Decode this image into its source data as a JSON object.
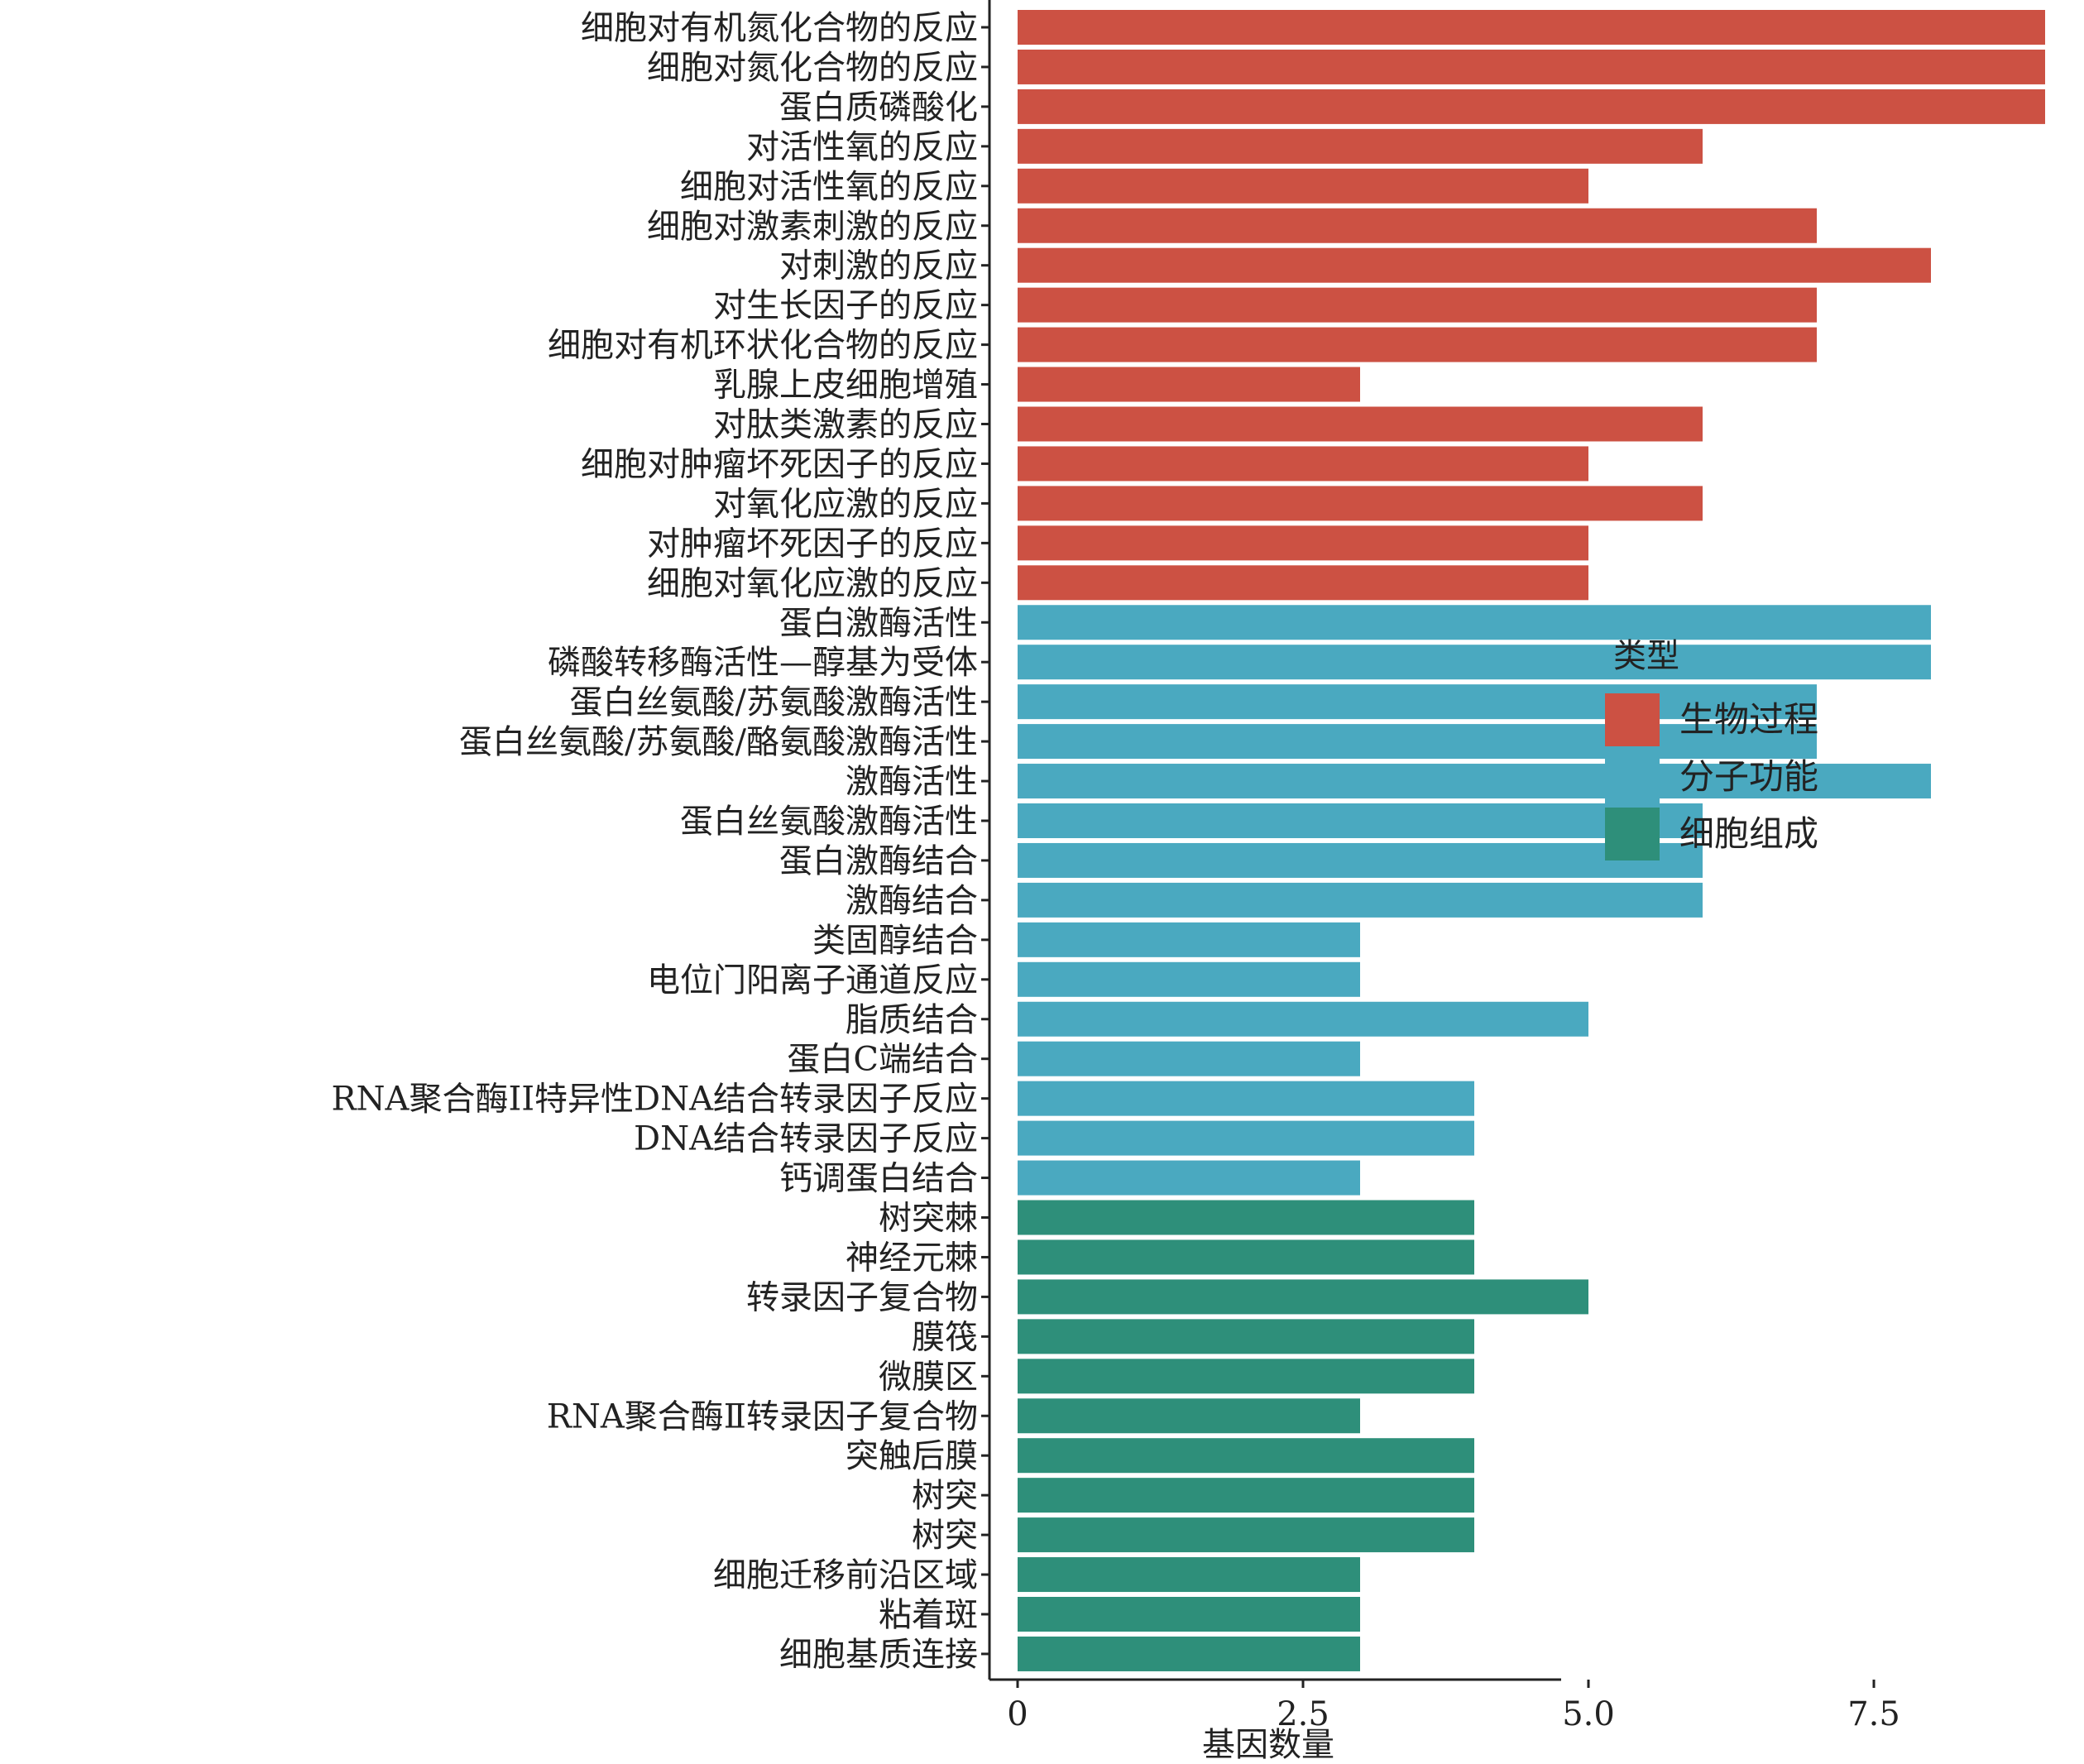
{
  "chart_data": {
    "type": "bar",
    "orientation": "horizontal",
    "xlabel": "基因数量",
    "ylabel": "",
    "xlim": [
      -0.3,
      9.5
    ],
    "xticks": [
      0,
      2.5,
      5.0,
      7.5
    ],
    "xtick_labels": [
      "0",
      "2.5",
      "5.0",
      "7.5"
    ],
    "grid": false,
    "legend": {
      "title": "类型",
      "position": "right",
      "entries": [
        {
          "label": "生物过程",
          "color": "#cc5143"
        },
        {
          "label": "分子功能",
          "color": "#4aa9c0"
        },
        {
          "label": "细胞组成",
          "color": "#2e8f7a"
        }
      ]
    },
    "categories": [
      "细胞对有机氮化合物的反应",
      "细胞对氮化合物的反应",
      "蛋白质磷酸化",
      "对活性氧的反应",
      "细胞对活性氧的反应",
      "细胞对激素刺激的反应",
      "对刺激的反应",
      "对生长因子的反应",
      "细胞对有机环状化合物的反应",
      "乳腺上皮细胞增殖",
      "对肽类激素的反应",
      "细胞对肿瘤坏死因子的反应",
      "对氧化应激的反应",
      "对肿瘤坏死因子的反应",
      "细胞对氧化应激的反应",
      "蛋白激酶活性",
      "磷酸转移酶活性—醇基为受体",
      "蛋白丝氨酸/苏氨酸激酶活性",
      "蛋白丝氨酸/苏氨酸/酪氨酸激酶活性",
      "激酶活性",
      "蛋白丝氨酸激酶活性",
      "蛋白激酶结合",
      "激酶结合",
      "类固醇结合",
      "电位门阳离子通道反应",
      "脂质结合",
      "蛋白C端结合",
      "RNA聚合酶II特异性DNA结合转录因子反应",
      "DNA结合转录因子反应",
      "钙调蛋白结合",
      "树突棘",
      "神经元棘",
      "转录因子复合物",
      "膜筏",
      "微膜区",
      "RNA聚合酶Ⅱ转录因子复合物",
      "突触后膜",
      "树突",
      "树突",
      "细胞迁移前沿区域",
      "粘着斑",
      "细胞基质连接"
    ],
    "values": [
      9,
      9,
      9,
      6,
      5,
      7,
      8,
      7,
      7,
      3,
      6,
      5,
      6,
      5,
      5,
      8,
      8,
      7,
      7,
      8,
      6,
      6,
      6,
      3,
      3,
      5,
      3,
      4,
      4,
      3,
      4,
      4,
      5,
      4,
      4,
      3,
      4,
      4,
      4,
      3,
      3,
      3
    ],
    "groups": [
      0,
      0,
      0,
      0,
      0,
      0,
      0,
      0,
      0,
      0,
      0,
      0,
      0,
      0,
      0,
      1,
      1,
      1,
      1,
      1,
      1,
      1,
      1,
      1,
      1,
      1,
      1,
      1,
      1,
      1,
      2,
      2,
      2,
      2,
      2,
      2,
      2,
      2,
      2,
      2,
      2,
      2
    ]
  }
}
